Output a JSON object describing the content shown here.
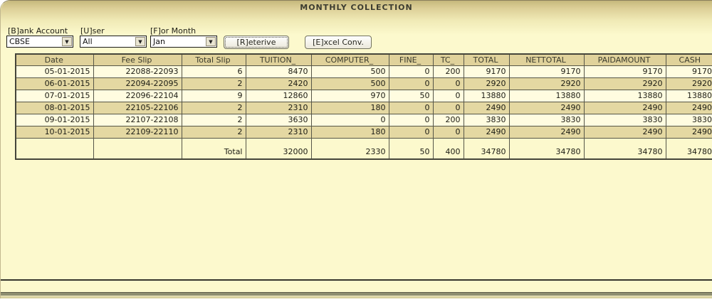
{
  "window": {
    "title": "MONTHLY  COLLECTION"
  },
  "filters": {
    "bank_account": {
      "label": "[B]ank Account",
      "value": "CBSE"
    },
    "user": {
      "label": "[U]ser",
      "value": "All"
    },
    "month": {
      "label": "[F]or Month",
      "value": "Jan"
    }
  },
  "buttons": {
    "retrieve": "[R]eterive",
    "excel": "[E]xcel Conv."
  },
  "table": {
    "columns": [
      "Date",
      "Fee Slip",
      "Total Slip",
      "TUITION_",
      "COMPUTER_",
      "FINE_",
      "TC_",
      "TOTAL",
      "NETTOTAL",
      "PAIDAMOUNT",
      "CASH"
    ],
    "rows": [
      [
        "05-01-2015",
        "22088-22093",
        "6",
        "8470",
        "500",
        "0",
        "200",
        "9170",
        "9170",
        "9170",
        "9170"
      ],
      [
        "06-01-2015",
        "22094-22095",
        "2",
        "2420",
        "500",
        "0",
        "0",
        "2920",
        "2920",
        "2920",
        "2920"
      ],
      [
        "07-01-2015",
        "22096-22104",
        "9",
        "12860",
        "970",
        "50",
        "0",
        "13880",
        "13880",
        "13880",
        "13880"
      ],
      [
        "08-01-2015",
        "22105-22106",
        "2",
        "2310",
        "180",
        "0",
        "0",
        "2490",
        "2490",
        "2490",
        "2490"
      ],
      [
        "09-01-2015",
        "22107-22108",
        "2",
        "3630",
        "0",
        "0",
        "200",
        "3830",
        "3830",
        "3830",
        "3830"
      ],
      [
        "10-01-2015",
        "22109-22110",
        "2",
        "2310",
        "180",
        "0",
        "0",
        "2490",
        "2490",
        "2490",
        "2490"
      ]
    ],
    "total_row": [
      "",
      "",
      "Total",
      "32000",
      "2330",
      "50",
      "400",
      "34780",
      "34780",
      "34780",
      "34780"
    ]
  },
  "colors": {
    "window_bg": "#fcf9cd",
    "titlebar_top": "#c6b87c",
    "header_row_bg": "#e0d29b",
    "row_bg": "#fffce0",
    "row_alt_bg": "#e4d8a2",
    "grid_border": "#565648"
  }
}
